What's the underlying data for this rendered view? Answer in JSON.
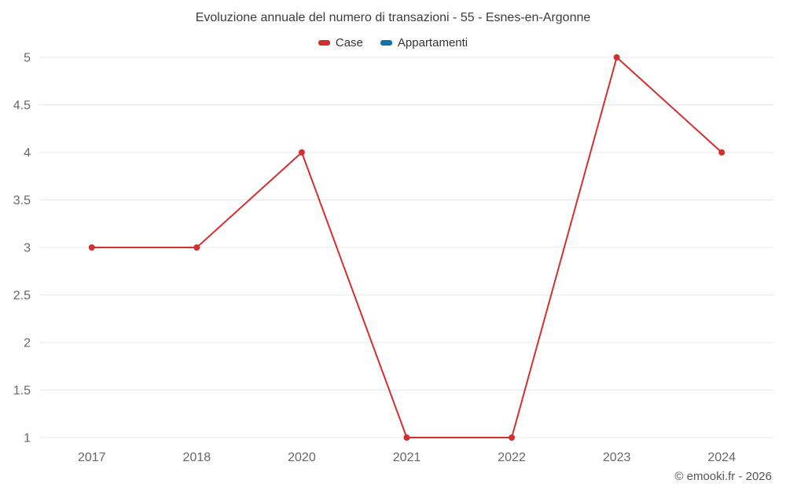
{
  "title": "Evoluzione annuale del numero di transazioni - 55 - Esnes-en-Argonne",
  "legend": [
    {
      "label": "Case",
      "color": "#d32f2f"
    },
    {
      "label": "Appartamenti",
      "color": "#1272a8"
    }
  ],
  "footer": {
    "credit": "© emooki.fr - 2026"
  },
  "chart_data": {
    "type": "line",
    "title": "Evoluzione annuale del numero di transazioni - 55 - Esnes-en-Argonne",
    "categories": [
      "2017",
      "2018",
      "2020",
      "2021",
      "2022",
      "2023",
      "2024"
    ],
    "series": [
      {
        "name": "Case",
        "color": "#d32f2f",
        "values": [
          3,
          3,
          4,
          1,
          1,
          5,
          4
        ]
      },
      {
        "name": "Appartamenti",
        "color": "#1272a8",
        "values": []
      }
    ],
    "xlabel": "",
    "ylabel": "",
    "ylim": [
      1,
      5
    ],
    "ytick_step": 0.5,
    "grid": "horizontal",
    "grid_color": "#e8e8e8",
    "legend_position": "top",
    "marker_radius": 4,
    "line_width": 2
  }
}
